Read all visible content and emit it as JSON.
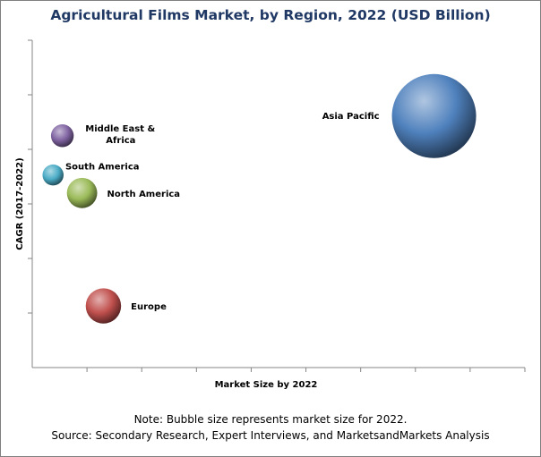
{
  "chart_data": {
    "type": "scatter",
    "title": "Agricultural Films Market, by Region, 2022 (USD Billion)",
    "xlabel": "Market Size by 2022",
    "ylabel": "CAGR (2017-2022)",
    "xlim": [
      0,
      9
    ],
    "ylim": [
      0,
      6
    ],
    "grid": false,
    "x_tick_count": 9,
    "y_tick_count": 6,
    "series": [
      {
        "points": [
          {
            "label": "Asia Pacific",
            "x": 7.34,
            "y": 4.61,
            "size": 1.0,
            "color": "#4f81bd"
          },
          {
            "label": "Middle East &\nAfrica",
            "x": 0.55,
            "y": 4.25,
            "size": 0.27,
            "color": "#8064a2"
          },
          {
            "label": "South America",
            "x": 0.38,
            "y": 3.53,
            "size": 0.25,
            "color": "#4bacc6"
          },
          {
            "label": "North America",
            "x": 0.91,
            "y": 3.2,
            "size": 0.36,
            "color": "#9bbb59"
          },
          {
            "label": "Europe",
            "x": 1.3,
            "y": 1.13,
            "size": 0.42,
            "color": "#c0504d"
          }
        ]
      }
    ]
  },
  "notes": {
    "line1": "Note: Bubble size represents market size for 2022.",
    "line2": "Source: Secondary Research, Expert Interviews, and MarketsandMarkets Analysis"
  }
}
